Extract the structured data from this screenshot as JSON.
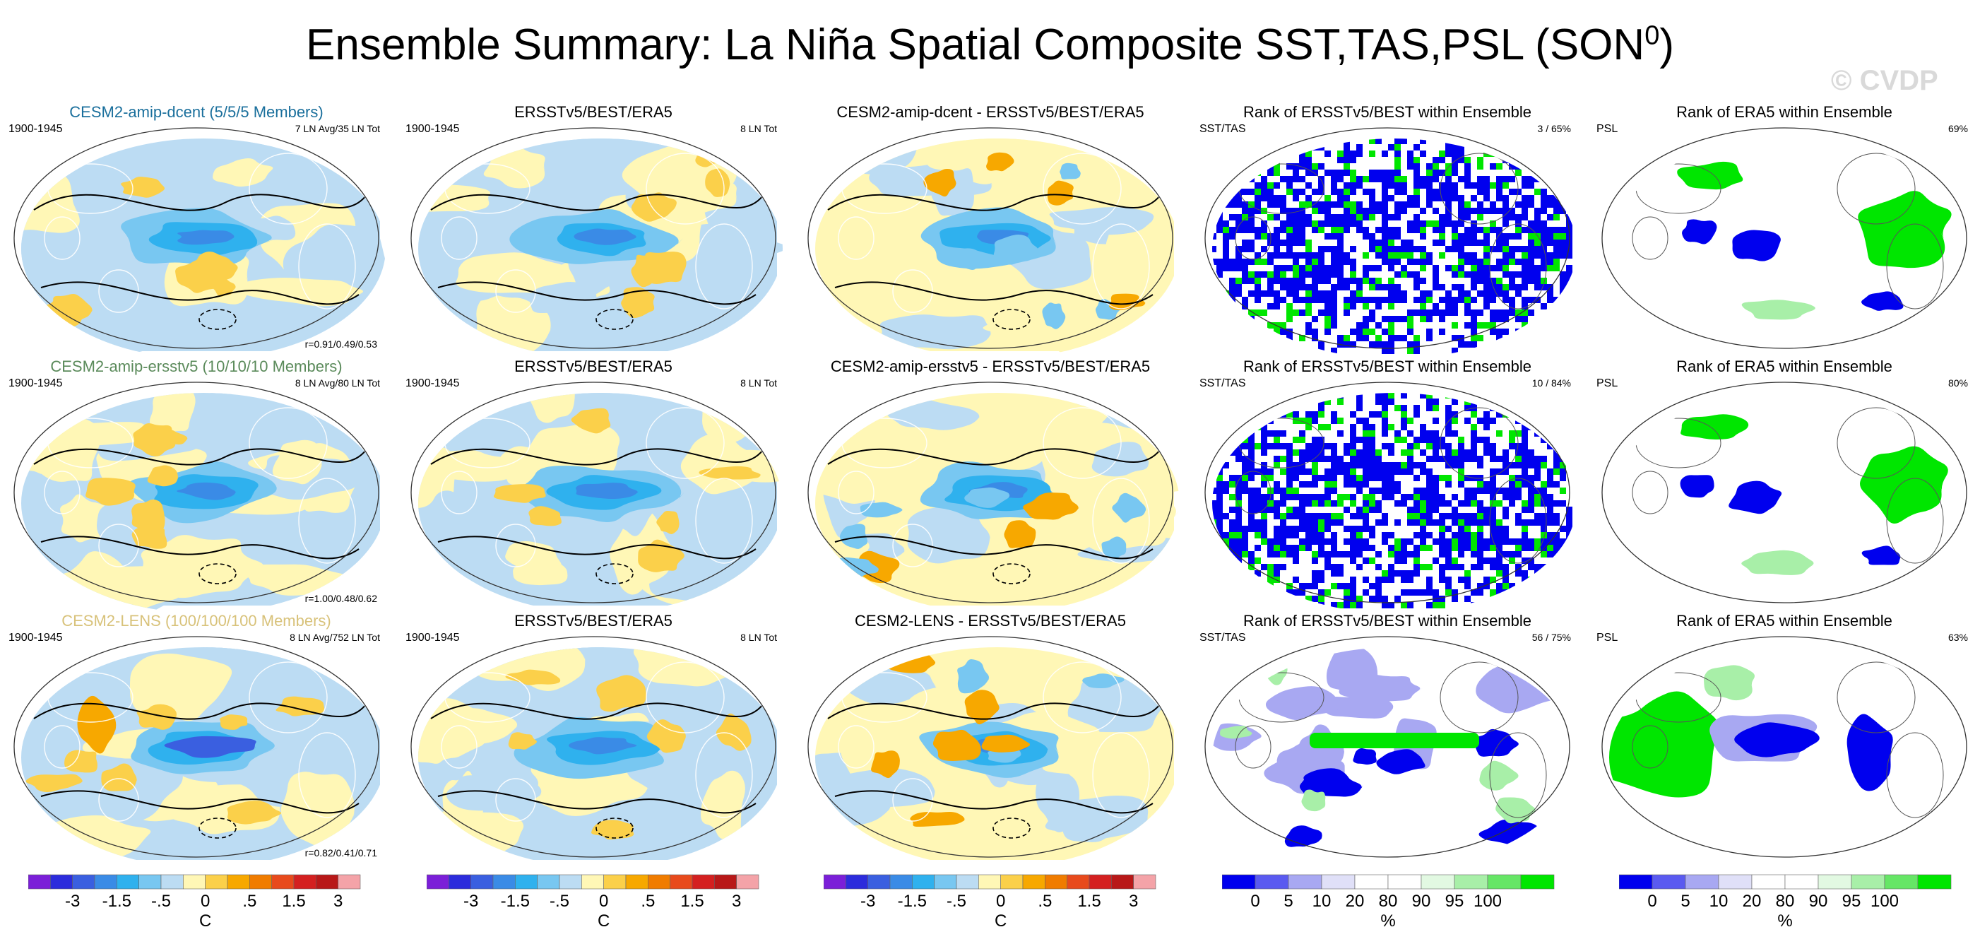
{
  "title": {
    "main": "Ensemble Summary: La Niña Spatial Composite SST,TAS,PSL (SON",
    "sup": "0",
    "close": ")"
  },
  "watermark": "© CVDP",
  "colors": {
    "anomaly_scale": [
      "#7b1fd8",
      "#2c2cdc",
      "#3a5fe0",
      "#3a8be6",
      "#2fb1ee",
      "#78c7f1",
      "#bcdcf3",
      "#fff7b6",
      "#fbd04a",
      "#f7a800",
      "#f07c00",
      "#e84a1c",
      "#d42020",
      "#b81818",
      "#f4a3a8"
    ],
    "rank_scale": [
      "#0000ee",
      "#5a5af0",
      "#a8a8f2",
      "#e0e0f8",
      "#ffffff",
      "#ffffff",
      "#e2f9e2",
      "#a8efa8",
      "#66e666",
      "#00e600"
    ]
  },
  "chart_data": [
    {
      "type": "map",
      "title": "CESM2-amip-dcent (5/5/5 Members)",
      "title_color": "#1a6f9c",
      "left_label": "1900-1945",
      "right_label": "7 LN Avg/35 LN Tot",
      "corr": "r=0.91/0.49/0.53",
      "style": "anomaly"
    },
    {
      "type": "map",
      "title": "ERSSTv5/BEST/ERA5",
      "title_color": "#000000",
      "left_label": "1900-1945",
      "right_label": "8 LN Tot",
      "corr": "",
      "style": "anomaly"
    },
    {
      "type": "map",
      "title": "CESM2-amip-dcent - ERSSTv5/BEST/ERA5",
      "title_color": "#000000",
      "left_label": "",
      "right_label": "",
      "corr": "",
      "style": "difference"
    },
    {
      "type": "map",
      "title": "Rank of ERSSTv5/BEST within Ensemble",
      "title_color": "#000000",
      "left_label": "SST/TAS",
      "right_label": "3 /  65%",
      "corr": "",
      "style": "rank-coarse"
    },
    {
      "type": "map",
      "title": "Rank of ERA5 within Ensemble",
      "title_color": "#000000",
      "left_label": "PSL",
      "right_label": "69%",
      "corr": "",
      "style": "rank-psl"
    },
    {
      "type": "map",
      "title": "CESM2-amip-ersstv5 (10/10/10 Members)",
      "title_color": "#5a8a5a",
      "left_label": "1900-1945",
      "right_label": "8 LN Avg/80 LN Tot",
      "corr": "r=1.00/0.48/0.62",
      "style": "anomaly"
    },
    {
      "type": "map",
      "title": "ERSSTv5/BEST/ERA5",
      "title_color": "#000000",
      "left_label": "1900-1945",
      "right_label": "8 LN Tot",
      "corr": "",
      "style": "anomaly"
    },
    {
      "type": "map",
      "title": "CESM2-amip-ersstv5 - ERSSTv5/BEST/ERA5",
      "title_color": "#000000",
      "left_label": "",
      "right_label": "",
      "corr": "",
      "style": "difference"
    },
    {
      "type": "map",
      "title": "Rank of ERSSTv5/BEST within Ensemble",
      "title_color": "#000000",
      "left_label": "SST/TAS",
      "right_label": "10 /  84%",
      "corr": "",
      "style": "rank-coarse"
    },
    {
      "type": "map",
      "title": "Rank of ERA5 within Ensemble",
      "title_color": "#000000",
      "left_label": "PSL",
      "right_label": "80%",
      "corr": "",
      "style": "rank-psl"
    },
    {
      "type": "map",
      "title": "CESM2-LENS (100/100/100 Members)",
      "title_color": "#d8c27a",
      "left_label": "1900-1945",
      "right_label": "8 LN Avg/752 LN Tot",
      "corr": "r=0.82/0.41/0.71",
      "style": "anomaly-strong"
    },
    {
      "type": "map",
      "title": "ERSSTv5/BEST/ERA5",
      "title_color": "#000000",
      "left_label": "1900-1945",
      "right_label": "8 LN Tot",
      "corr": "",
      "style": "anomaly"
    },
    {
      "type": "map",
      "title": "CESM2-LENS - ERSSTv5/BEST/ERA5",
      "title_color": "#000000",
      "left_label": "",
      "right_label": "",
      "corr": "",
      "style": "difference"
    },
    {
      "type": "map",
      "title": "Rank of ERSSTv5/BEST within Ensemble",
      "title_color": "#000000",
      "left_label": "SST/TAS",
      "right_label": "56 /  75%",
      "corr": "",
      "style": "rank-fine"
    },
    {
      "type": "map",
      "title": "Rank of ERA5 within Ensemble",
      "title_color": "#000000",
      "left_label": "PSL",
      "right_label": "63%",
      "corr": "",
      "style": "rank-psl-fine"
    }
  ],
  "colorbars": [
    {
      "kind": "anomaly",
      "ticks": [
        "-3",
        "-1.5",
        "-.5",
        "0",
        ".5",
        "1.5",
        "3"
      ],
      "unit": "C"
    },
    {
      "kind": "anomaly",
      "ticks": [
        "-3",
        "-1.5",
        "-.5",
        "0",
        ".5",
        "1.5",
        "3"
      ],
      "unit": "C"
    },
    {
      "kind": "anomaly",
      "ticks": [
        "-3",
        "-1.5",
        "-.5",
        "0",
        ".5",
        "1.5",
        "3"
      ],
      "unit": "C"
    },
    {
      "kind": "rank",
      "ticks": [
        "0",
        "5",
        "10",
        "20",
        "80",
        "90",
        "95",
        "100"
      ],
      "unit": "%"
    },
    {
      "kind": "rank",
      "ticks": [
        "0",
        "5",
        "10",
        "20",
        "80",
        "90",
        "95",
        "100"
      ],
      "unit": "%"
    }
  ]
}
